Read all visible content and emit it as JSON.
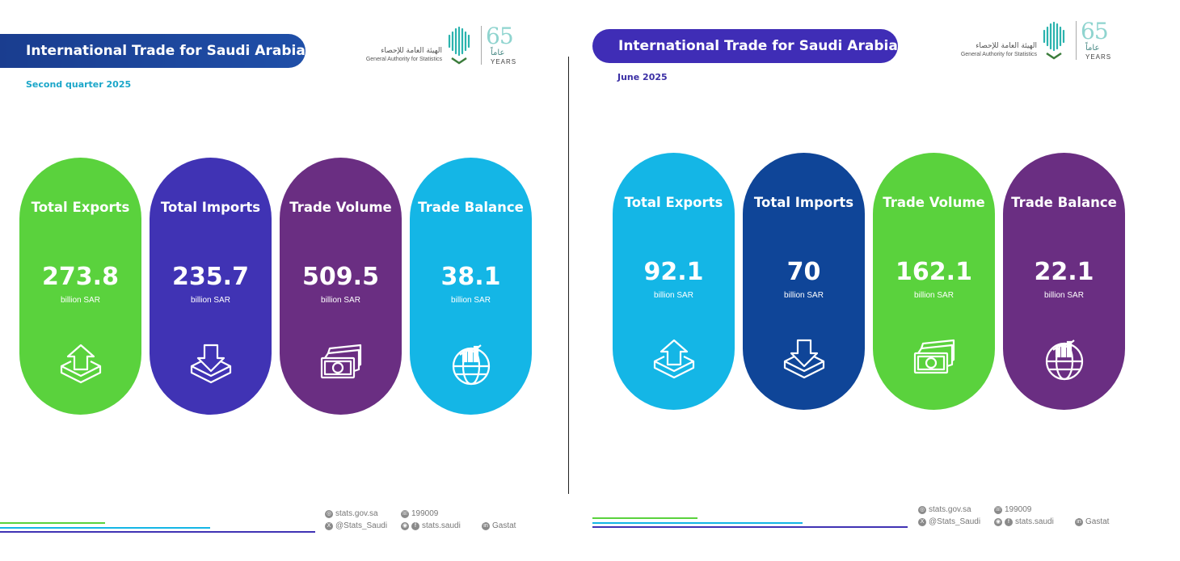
{
  "left": {
    "title": "International Trade for Saudi Arabia",
    "subtitle": "Second quarter 2025",
    "logo": {
      "arabic": "الهيئة العامة للإحصاء",
      "english": "General Authority for Statistics",
      "anniversary": "65",
      "arabic_years": "عاماً",
      "years": "YEARS"
    },
    "cards": [
      {
        "title": "Total Exports",
        "value": "273.8",
        "unit": "billion SAR",
        "icon": "export-icon",
        "color": "#5ad23d"
      },
      {
        "title": "Total Imports",
        "value": "235.7",
        "unit": "billion SAR",
        "icon": "import-icon",
        "color": "#4033b4"
      },
      {
        "title": "Trade Volume",
        "value": "509.5",
        "unit": "billion SAR",
        "icon": "money-stack-icon",
        "color": "#6a2e82"
      },
      {
        "title": "Trade Balance",
        "value": "38.1",
        "unit": "billion SAR",
        "icon": "globe-chart-icon",
        "color": "#14b6e6"
      }
    ],
    "contact": {
      "website": "stats.gov.sa",
      "phone": "199009",
      "x_handle": "@Stats_Saudi",
      "instagram_facebook": "stats.saudi",
      "linkedin": "Gastat"
    }
  },
  "right": {
    "title": "International Trade for Saudi Arabia",
    "subtitle": "June 2025",
    "logo": {
      "arabic": "الهيئة العامة للإحصاء",
      "english": "General Authority for Statistics",
      "anniversary": "65",
      "arabic_years": "عاماً",
      "years": "YEARS"
    },
    "cards": [
      {
        "title": "Total Exports",
        "value": "92.1",
        "unit": "billion SAR",
        "icon": "export-icon",
        "color": "#14b6e6"
      },
      {
        "title": "Total Imports",
        "value": "70",
        "unit": "billion SAR",
        "icon": "import-icon",
        "color": "#0f4598"
      },
      {
        "title": "Trade Volume",
        "value": "162.1",
        "unit": "billion SAR",
        "icon": "money-stack-icon",
        "color": "#5ad23d"
      },
      {
        "title": "Trade Balance",
        "value": "22.1",
        "unit": "billion SAR",
        "icon": "globe-chart-icon",
        "color": "#6a2e82"
      }
    ],
    "contact": {
      "website": "stats.gov.sa",
      "phone": "199009",
      "x_handle": "@Stats_Saudi",
      "instagram_facebook": "stats.saudi",
      "linkedin": "Gastat"
    }
  }
}
